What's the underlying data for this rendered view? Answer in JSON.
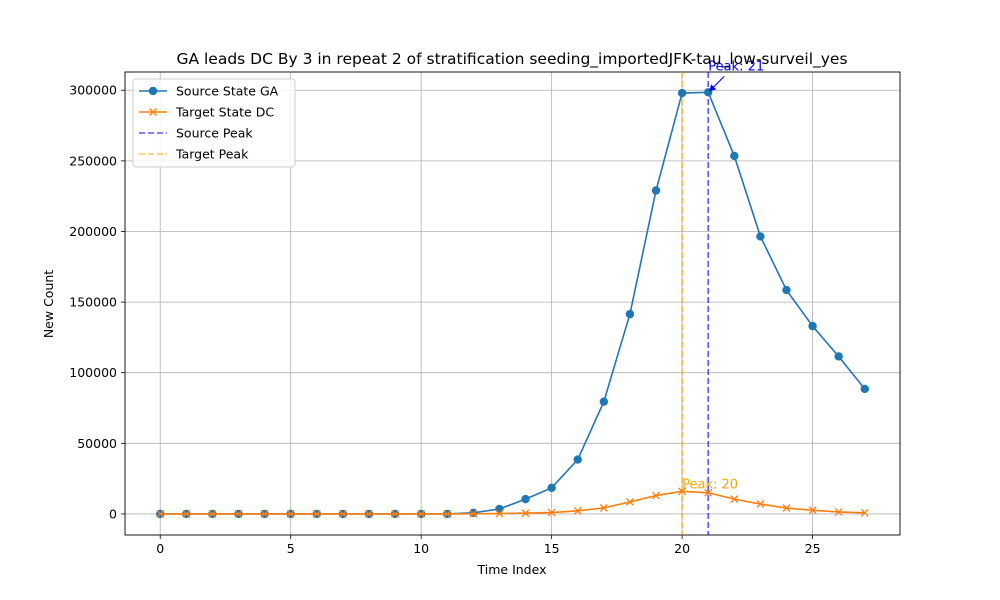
{
  "chart_data": {
    "type": "line",
    "title": "GA leads DC By 3 in repeat 2 of stratification seeding_importedJFK-tau_low-surveil_yes",
    "xlabel": "Time Index",
    "ylabel": "New Count",
    "xlim": [
      -1.35,
      28.35
    ],
    "ylim": [
      -14900,
      312900
    ],
    "xticks": [
      0,
      5,
      10,
      15,
      20,
      25
    ],
    "yticks": [
      0,
      50000,
      100000,
      150000,
      200000,
      250000,
      300000
    ],
    "grid": true,
    "legend_position": "top-left",
    "x": [
      0,
      1,
      2,
      3,
      4,
      5,
      6,
      7,
      8,
      9,
      10,
      11,
      12,
      13,
      14,
      15,
      16,
      17,
      18,
      19,
      20,
      21,
      22,
      23,
      24,
      25,
      26,
      27
    ],
    "series": [
      {
        "name": "Source State GA",
        "marker": "circle",
        "color": "#1f77b4",
        "values": [
          0,
          0,
          0,
          0,
          0,
          0,
          0,
          0,
          0,
          0,
          0,
          0,
          800,
          3500,
          10500,
          18500,
          38500,
          79500,
          141500,
          229000,
          298000,
          298500,
          253500,
          196500,
          158500,
          133000,
          111500,
          88500
        ]
      },
      {
        "name": "Target State DC",
        "marker": "x",
        "color": "#ff7f0e",
        "values": [
          0,
          0,
          0,
          0,
          0,
          0,
          0,
          0,
          0,
          0,
          0,
          0,
          100,
          300,
          600,
          1000,
          2200,
          4300,
          8500,
          13000,
          16000,
          15000,
          10500,
          7000,
          4200,
          2600,
          1400,
          800
        ]
      }
    ],
    "reference_lines": [
      {
        "name": "Source Peak",
        "x": 21,
        "color": "#0000ff",
        "style": "dashed"
      },
      {
        "name": "Target Peak",
        "x": 20,
        "color": "#ffa500",
        "style": "dashed"
      }
    ],
    "annotations": [
      {
        "text": "Peak: 21",
        "x": 21,
        "y": 298500,
        "color": "#0000ff",
        "arrow": true
      },
      {
        "text": "Peak: 20",
        "x": 20,
        "y": 16000,
        "color": "#ffa500",
        "arrow": false
      }
    ]
  }
}
